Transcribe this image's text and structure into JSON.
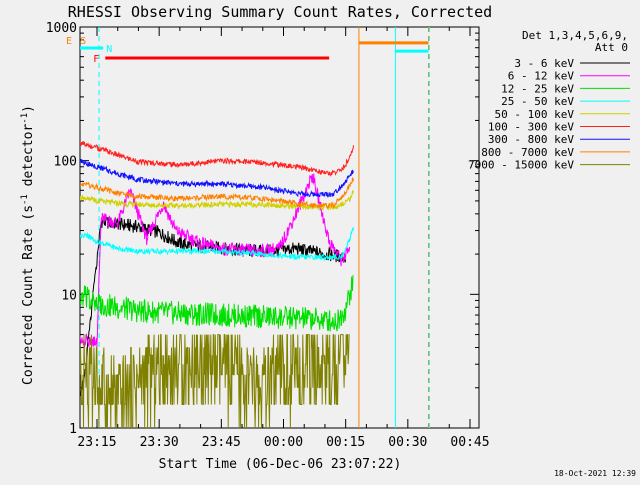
{
  "chart_data": {
    "type": "line",
    "title": "RHESSI Observing Summary Count Rates, Corrected",
    "xlabel": "Start Time (06-Dec-06 23:07:22)",
    "ylabel": "Corrected Count Rate (s",
    "ylabel_sup1": "-1",
    "ylabel_mid": " detector",
    "ylabel_sup2": "-1",
    "ylabel_end": ")",
    "yscale": "log",
    "ylim": [
      1,
      1000
    ],
    "xlim_minutes": [
      -7.37,
      40.5
    ],
    "yticks": [
      {
        "label": "1",
        "value": 1
      },
      {
        "label": "10",
        "value": 10
      },
      {
        "label": "100",
        "value": 100
      },
      {
        "label": "1000",
        "value": 1000
      }
    ],
    "xticks": [
      {
        "label": "23:15",
        "value": 0
      },
      {
        "label": "23:30",
        "value": 15
      },
      {
        "label": "23:45",
        "value": 30
      },
      {
        "label": "00:00",
        "value": 45
      },
      {
        "label": "00:15",
        "value": 60
      },
      {
        "label": "00:30",
        "value": 75
      },
      {
        "label": "00:45",
        "value": 90
      }
    ],
    "legend_header": [
      "Det 1,3,4,5,6,9,",
      "Att 0"
    ],
    "legend_position": "right",
    "timestamp": "18-Oct-2021 12:39",
    "flags": [
      {
        "label": "E",
        "color": "#ff8000",
        "x_start": -7.0,
        "x_end": -6.2
      },
      {
        "label": "S",
        "color": "#ff8000",
        "x_start": -6.0,
        "x_end": -4.8
      },
      {
        "label": "N",
        "color": "#00ffff",
        "x_start": -7.1,
        "x_end": 1.5
      },
      {
        "label": "F",
        "color": "#ff0000",
        "x_start": 2.0,
        "x_end": 56.0
      }
    ],
    "series": [
      {
        "name": "3 - 6 keV",
        "color": "#000000",
        "segments": [
          [
            -6.5,
            1,
            0.5,
            0.3,
            1.1
          ],
          [
            0.7,
            1,
            -1,
            0.5,
            1.1
          ]
        ],
        "values": [
          [
            -6.5,
            1.0
          ],
          [
            -3,
            2.5
          ],
          [
            1,
            35
          ],
          [
            10,
            32
          ],
          [
            15,
            29
          ],
          [
            20,
            24
          ],
          [
            30,
            22
          ],
          [
            40,
            21
          ],
          [
            48,
            22
          ],
          [
            55,
            20
          ],
          [
            60,
            19
          ]
        ]
      },
      {
        "name": "6 - 12 keV",
        "color": "#ff00ff",
        "values": [
          [
            -6.5,
            3.8
          ],
          [
            -3,
            4.5
          ],
          [
            0,
            4.5
          ],
          [
            1,
            37
          ],
          [
            5,
            34
          ],
          [
            8,
            60
          ],
          [
            12,
            26
          ],
          [
            16,
            48
          ],
          [
            19,
            30
          ],
          [
            25,
            24
          ],
          [
            30,
            22
          ],
          [
            38,
            21
          ],
          [
            44,
            22
          ],
          [
            48,
            40
          ],
          [
            52,
            78
          ],
          [
            56,
            25
          ],
          [
            59,
            18
          ],
          [
            61,
            22
          ]
        ]
      },
      {
        "name": "12 - 25 keV",
        "color": "#00e000",
        "values": [
          [
            -6.5,
            6.8
          ],
          [
            -3,
            9.5
          ],
          [
            0,
            8.5
          ],
          [
            5,
            8.0
          ],
          [
            10,
            7.5
          ],
          [
            20,
            7.2
          ],
          [
            30,
            7.0
          ],
          [
            40,
            6.8
          ],
          [
            50,
            6.6
          ],
          [
            58,
            6.3
          ],
          [
            60,
            7.8
          ],
          [
            62,
            13
          ]
        ]
      },
      {
        "name": "25 - 50 keV",
        "color": "#00ffff",
        "values": [
          [
            -6.5,
            26
          ],
          [
            -3,
            28
          ],
          [
            0,
            25
          ],
          [
            5,
            22
          ],
          [
            10,
            21
          ],
          [
            20,
            21
          ],
          [
            30,
            21
          ],
          [
            40,
            20
          ],
          [
            48,
            19
          ],
          [
            55,
            19
          ],
          [
            59,
            19
          ],
          [
            61,
            26
          ],
          [
            62,
            33
          ]
        ]
      },
      {
        "name": "50 - 100 keV",
        "color": "#d0d000",
        "values": [
          [
            -6.5,
            52
          ],
          [
            -3,
            53
          ],
          [
            0,
            50
          ],
          [
            5,
            48
          ],
          [
            10,
            47
          ],
          [
            20,
            46
          ],
          [
            30,
            47
          ],
          [
            40,
            47
          ],
          [
            50,
            45
          ],
          [
            58,
            45
          ],
          [
            61,
            52
          ],
          [
            62,
            60
          ]
        ]
      },
      {
        "name": "100 - 300 keV",
        "color": "#ff2020",
        "values": [
          [
            -6.5,
            102
          ],
          [
            -4,
            135
          ],
          [
            0,
            125
          ],
          [
            5,
            110
          ],
          [
            10,
            98
          ],
          [
            20,
            93
          ],
          [
            30,
            100
          ],
          [
            40,
            97
          ],
          [
            50,
            88
          ],
          [
            56,
            80
          ],
          [
            59,
            85
          ],
          [
            61,
            105
          ],
          [
            62,
            130
          ]
        ]
      },
      {
        "name": "300 - 800 keV",
        "color": "#1010ff",
        "values": [
          [
            -6.5,
            88
          ],
          [
            -4,
            100
          ],
          [
            0,
            90
          ],
          [
            5,
            80
          ],
          [
            10,
            72
          ],
          [
            20,
            67
          ],
          [
            30,
            67
          ],
          [
            40,
            63
          ],
          [
            50,
            56
          ],
          [
            57,
            56
          ],
          [
            60,
            70
          ],
          [
            62,
            85
          ]
        ]
      },
      {
        "name": "800 - 7000 keV",
        "color": "#ff8000",
        "values": [
          [
            -6.5,
            60
          ],
          [
            -4,
            68
          ],
          [
            0,
            63
          ],
          [
            5,
            57
          ],
          [
            10,
            54
          ],
          [
            20,
            52
          ],
          [
            30,
            54
          ],
          [
            40,
            52
          ],
          [
            50,
            47
          ],
          [
            57,
            46
          ],
          [
            60,
            58
          ],
          [
            62,
            75
          ]
        ]
      },
      {
        "name": "7000 - 15000 keV",
        "color": "#808000",
        "values": [
          [
            -6.5,
            1.0
          ],
          [
            -5,
            3.5
          ],
          [
            -3,
            2.5
          ],
          [
            1,
            2.0
          ],
          [
            5,
            1.5
          ],
          [
            10,
            2.2
          ],
          [
            15,
            2.8
          ],
          [
            20,
            3.0
          ],
          [
            30,
            2.8
          ],
          [
            40,
            1.8
          ],
          [
            45,
            2.5
          ],
          [
            50,
            2.9
          ],
          [
            56,
            2.8
          ],
          [
            59,
            4.0
          ],
          [
            61,
            6.5
          ]
        ]
      }
    ],
    "annotations": [
      {
        "label": "saa-top-bar",
        "color": "#ff8000",
        "x_start": 63.2,
        "x_end": 72.0,
        "level": 760
      },
      {
        "label": "saa-top-bar-2",
        "color": "#ff8000",
        "x_start": 72.0,
        "x_end": 80.0,
        "level": 760
      },
      {
        "label": "night-top-bar",
        "color": "#00ffff",
        "x_start": 72.0,
        "x_end": 80.0,
        "level": 660
      }
    ],
    "vlines": [
      {
        "x": -7.1,
        "color": "#00ffff",
        "style": "solid"
      },
      {
        "x": -6.1,
        "color": "#ff8000",
        "style": "dash"
      },
      {
        "x": 0.5,
        "color": "#00ffff",
        "style": "dash"
      },
      {
        "x": 63.2,
        "color": "#ff8000",
        "style": "solid"
      },
      {
        "x": 72.0,
        "color": "#00ffff",
        "style": "solid"
      },
      {
        "x": 80.0,
        "color": "#ff8000",
        "style": "dash"
      },
      {
        "x": 80.2,
        "color": "#00ffff",
        "style": "dash"
      }
    ]
  }
}
